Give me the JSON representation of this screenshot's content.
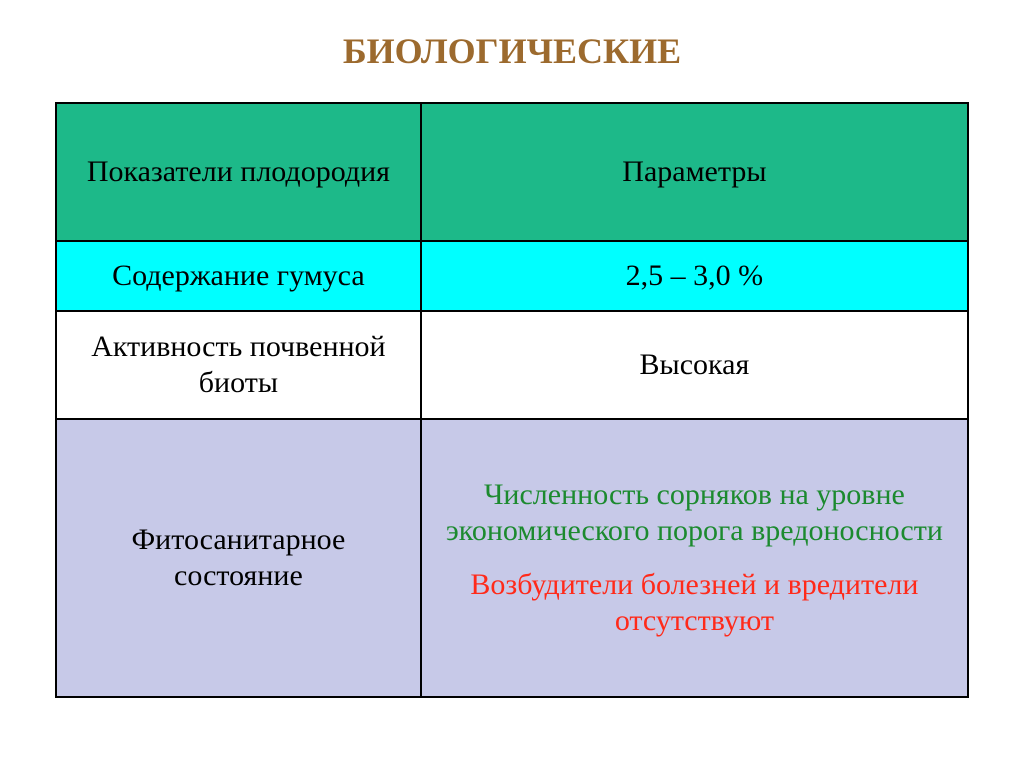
{
  "title": {
    "text": "БИОЛОГИЧЕСКИЕ",
    "color": "#9c6a2e",
    "fontsize": 36
  },
  "table": {
    "body_fontsize": 30,
    "columns": {
      "col1_width_pct": 40,
      "col2_width_pct": 60
    },
    "border_color": "#000000",
    "header": {
      "bg": "#1db989",
      "text_color": "#000000",
      "col1": "Показатели плодородия",
      "col2": "Параметры"
    },
    "rows": [
      {
        "key": "humus",
        "bg": "#00ffff",
        "col1": {
          "text": "Содержание гумуса",
          "color": "#000000"
        },
        "col2": {
          "text": "2,5 – 3,0 %",
          "color": "#000000"
        }
      },
      {
        "key": "biota",
        "bg": "#ffffff",
        "col1": {
          "text": "Активность почвенной биоты",
          "color": "#000000"
        },
        "col2": {
          "text": "Высокая",
          "color": "#000000"
        }
      },
      {
        "key": "phyto",
        "bg": "#c7c9e8",
        "col1": {
          "text": "Фитосанитарное состояние",
          "color": "#000000"
        },
        "col2_lines": [
          {
            "text": "Численность сорняков на уровне экономического порога вредоносности",
            "color": "#1c8a2f"
          },
          {
            "text": "Возбудители болезней и вредители отсутствуют",
            "color": "#ff2a1a"
          }
        ]
      }
    ]
  }
}
